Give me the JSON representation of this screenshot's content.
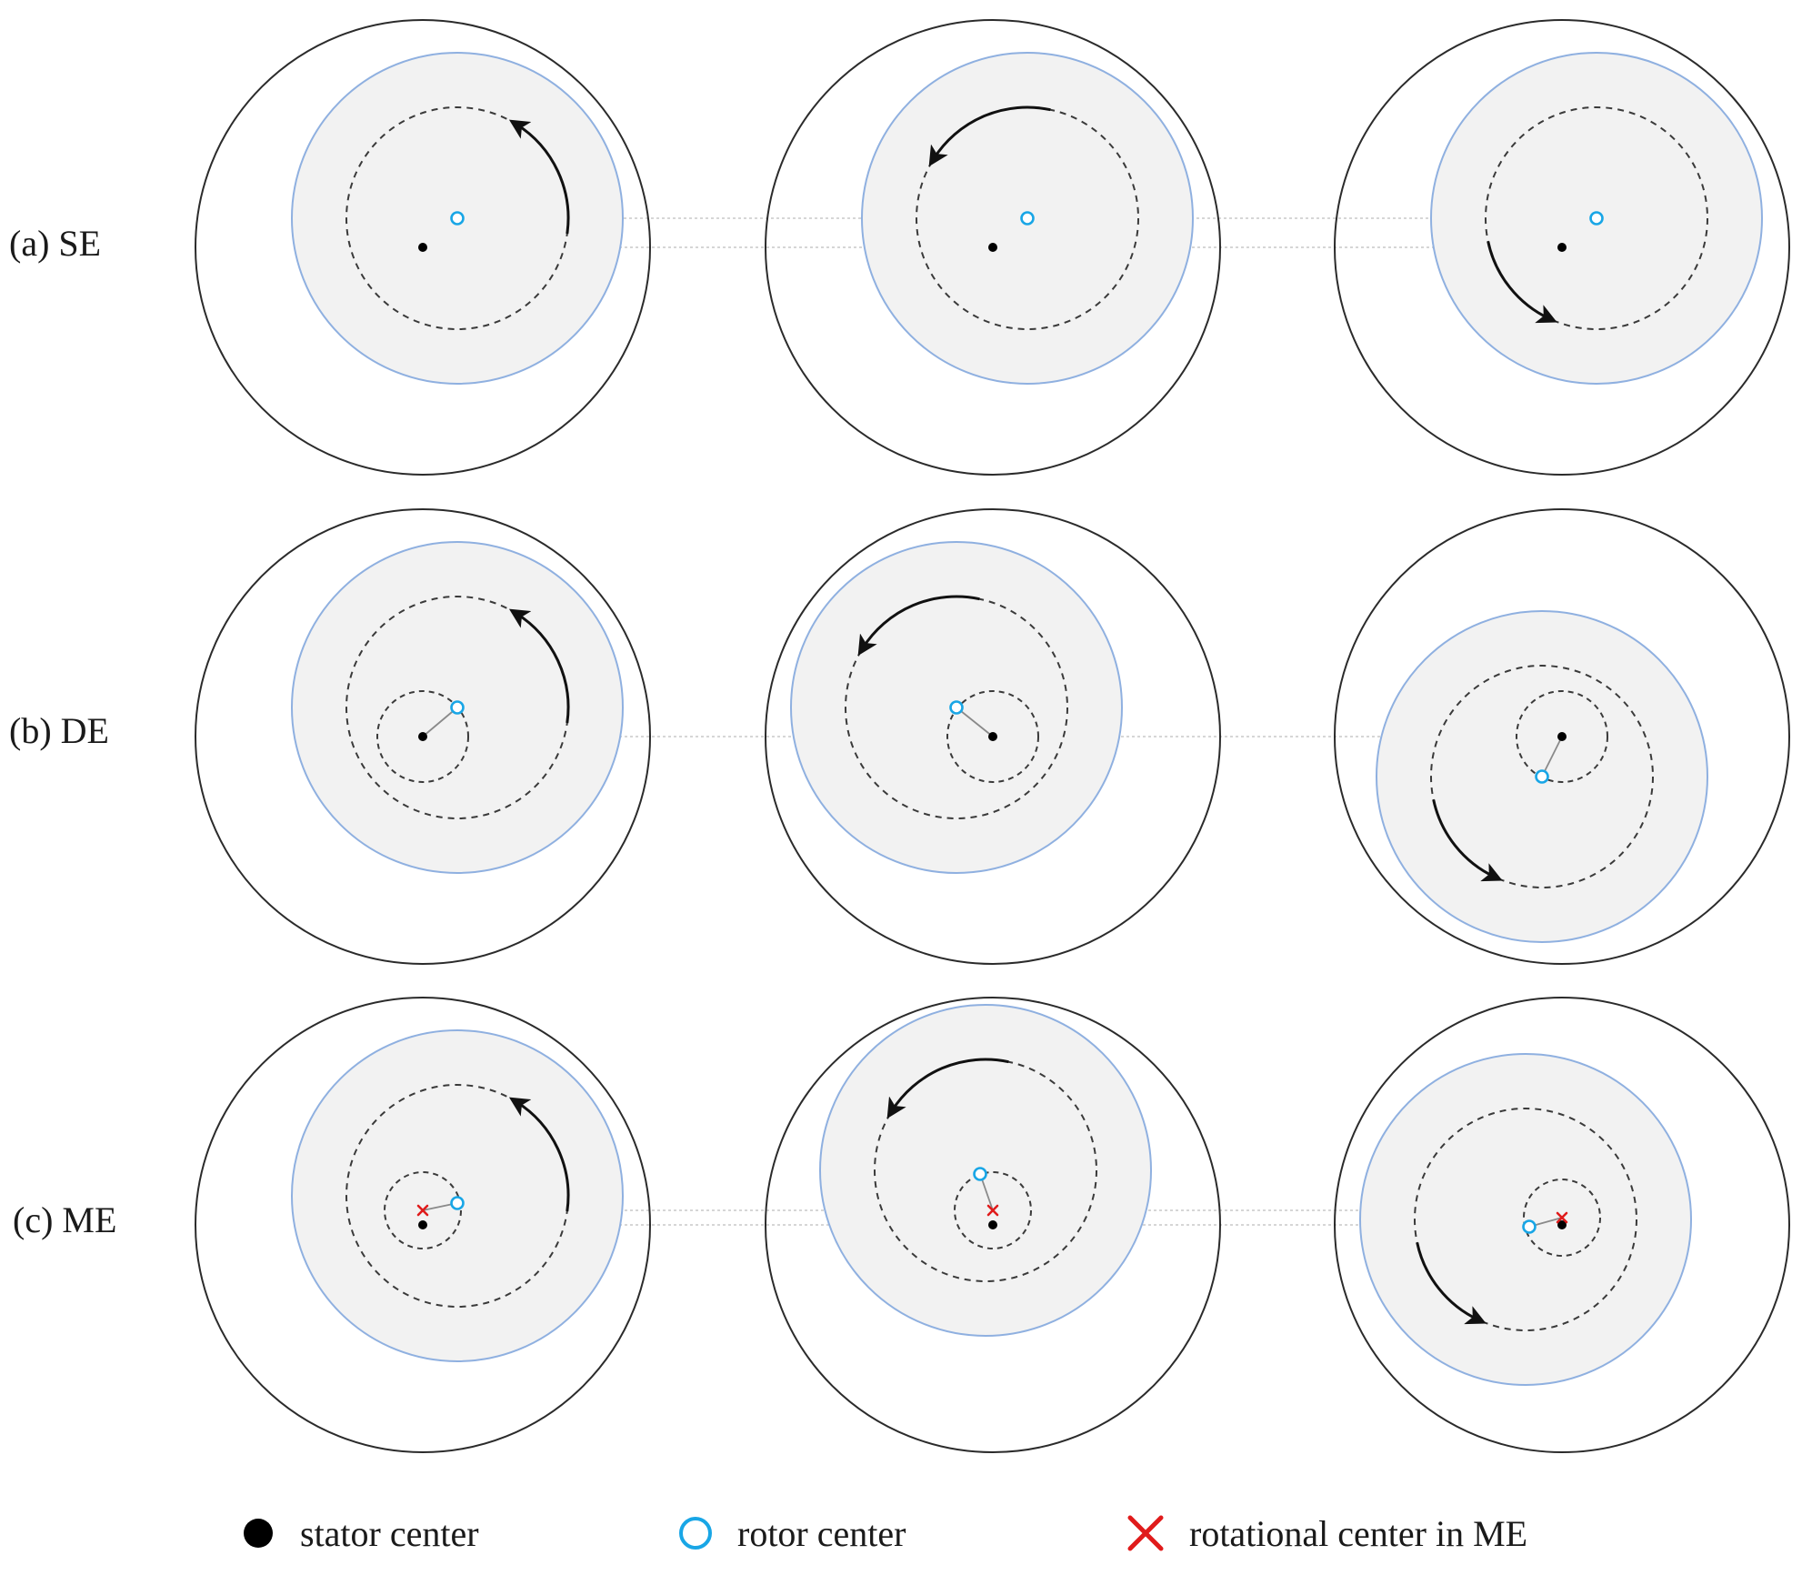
{
  "rows": [
    {
      "id": "se",
      "label": "(a) SE"
    },
    {
      "id": "de",
      "label": "(b) DE"
    },
    {
      "id": "me",
      "label": "(c) ME"
    }
  ],
  "legend": {
    "stator": "stator center",
    "rotor": "rotor center",
    "rotational": "rotational center in ME"
  },
  "colors": {
    "stator_outline": "#2b2b2b",
    "rotor_outline": "#8fb0e0",
    "rotor_fill": "#f2f2f2",
    "orbit": "#3a3a3a",
    "rotor_center": "#19a6e6",
    "rotational_center": "#e01b1b",
    "stator_center": "#000000",
    "reference_line": "#c8c8c8"
  },
  "icons": {
    "stator": "filled-circle",
    "rotor": "hollow-circle",
    "rotational": "red-x-cross"
  }
}
